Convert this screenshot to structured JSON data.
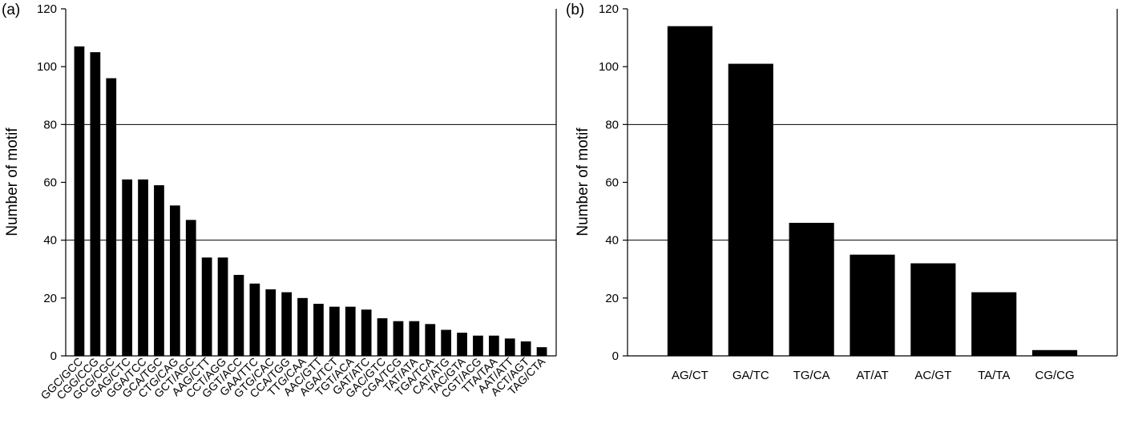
{
  "chart_data": [
    {
      "type": "bar",
      "panel_label": "(a)",
      "title": "",
      "xlabel": "",
      "ylabel": "Number of motif",
      "ylim": [
        0,
        120
      ],
      "yticks": [
        0,
        20,
        40,
        60,
        80,
        100,
        120
      ],
      "gridlines": [
        40,
        80
      ],
      "bar_color": "#000000",
      "categories": [
        "GGC/GCC",
        "CGG/CCG",
        "GCG/CGC",
        "GAG/CTC",
        "GGA/TCC",
        "GCA/TGC",
        "CTG/CAG",
        "GCT/AGC",
        "AAG/CTT",
        "CCT/AGG",
        "GGT/ACC",
        "GAA/TTC",
        "GTG/CAC",
        "CCA/TGG",
        "TTG/CAA",
        "AAC/GTT",
        "AGA/TCT",
        "TGT/ACA",
        "GAT/ATC",
        "GAC/GTC",
        "CGA/TCG",
        "TAT/ATA",
        "TGA/TCA",
        "CAT/ATG",
        "TAC/GTA",
        "CGT/ACG",
        "TTA/TAA",
        "AAT/ATT",
        "ACT/AGT",
        "TAG/CTA"
      ],
      "values": [
        107,
        105,
        96,
        61,
        61,
        59,
        52,
        47,
        34,
        34,
        28,
        25,
        23,
        22,
        20,
        18,
        17,
        17,
        16,
        13,
        12,
        12,
        11,
        9,
        8,
        7,
        7,
        6,
        5,
        3
      ]
    },
    {
      "type": "bar",
      "panel_label": "(b)",
      "title": "",
      "xlabel": "",
      "ylabel": "Number of motif",
      "ylim": [
        0,
        120
      ],
      "yticks": [
        0,
        20,
        40,
        60,
        80,
        100,
        120
      ],
      "gridlines": [
        40,
        80
      ],
      "bar_color": "#000000",
      "categories": [
        "AG/CT",
        "GA/TC",
        "TG/CA",
        "AT/AT",
        "AC/GT",
        "TA/TA",
        "CG/CG"
      ],
      "values": [
        114,
        101,
        46,
        35,
        32,
        22,
        2
      ]
    }
  ]
}
